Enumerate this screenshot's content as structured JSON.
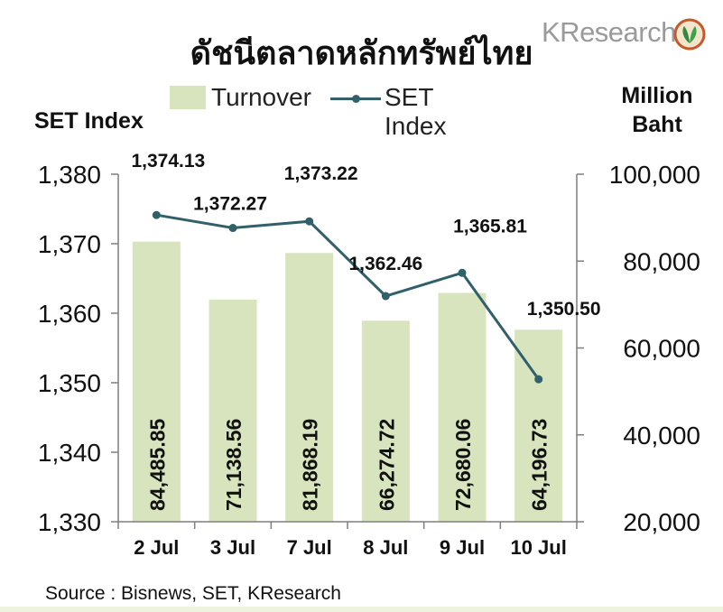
{
  "title": "ดัชนีตลาดหลักทรัพย์ไทย",
  "logo": {
    "text": "KResearch",
    "icon": "kbank-leaf-icon",
    "color": "#8a9a3a"
  },
  "source": "Source : Bisnews, SET, KResearch",
  "colors": {
    "bar": "#d7e4bd",
    "line": "#31606a",
    "axis": "#7f7f7f"
  },
  "chart_data": {
    "type": "bar+line",
    "categories": [
      "2 Jul",
      "3 Jul",
      "7 Jul",
      "8 Jul",
      "9 Jul",
      "10 Jul"
    ],
    "series": [
      {
        "name": "Turnover",
        "type": "bar",
        "axis": "right",
        "values": [
          84485.85,
          71138.56,
          81868.19,
          66274.72,
          72680.06,
          64196.73
        ],
        "labels": [
          "84,485.85",
          "71,138.56",
          "81,868.19",
          "66,274.72",
          "72,680.06",
          "64,196.73"
        ]
      },
      {
        "name": "SET Index",
        "type": "line",
        "axis": "left",
        "values": [
          1374.13,
          1372.27,
          1373.22,
          1362.46,
          1365.81,
          1350.5
        ],
        "labels": [
          "1,374.13",
          "1,372.27",
          "1,373.22",
          "1,362.46",
          "1,365.81",
          "1,350.50"
        ]
      }
    ],
    "yleft": {
      "label": "SET Index",
      "lim": [
        1330,
        1380
      ],
      "ticks": [
        1330,
        1340,
        1350,
        1360,
        1370,
        1380
      ],
      "tick_labels": [
        "1,330",
        "1,340",
        "1,350",
        "1,360",
        "1,370",
        "1,380"
      ]
    },
    "yright": {
      "label_lines": [
        "Million",
        "Baht"
      ],
      "lim": [
        20000,
        100000
      ],
      "ticks": [
        20000,
        40000,
        60000,
        80000,
        100000
      ],
      "tick_labels": [
        "20,000",
        "40,000",
        "60,000",
        "80,000",
        "100,000"
      ]
    },
    "grid": false,
    "legend": "top-center"
  }
}
